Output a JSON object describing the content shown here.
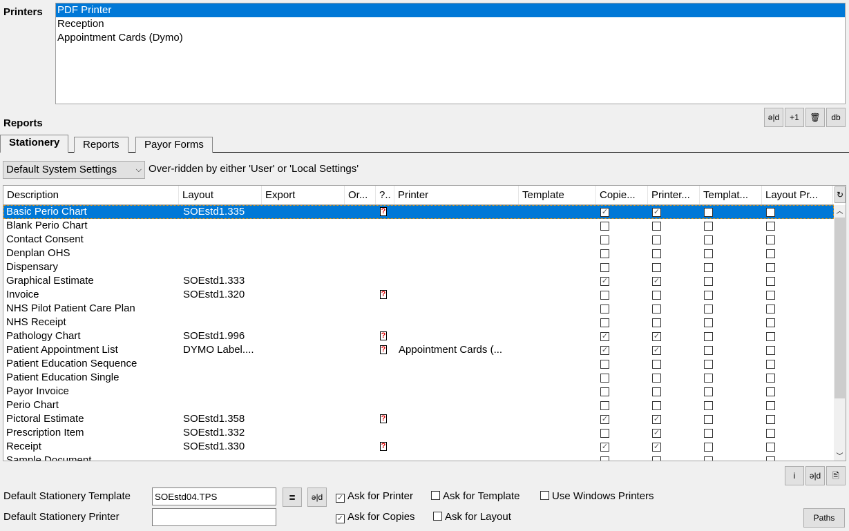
{
  "printers": {
    "label": "Printers",
    "items": [
      "PDF Printer",
      "Reception",
      "Appointment Cards (Dymo)"
    ],
    "selected": 0
  },
  "printer_buttons": [
    {
      "name": "edit-button",
      "glyph": "ǝ|d"
    },
    {
      "name": "add-one-button",
      "glyph": "+1"
    },
    {
      "name": "delete-button",
      "glyph": "🗑"
    },
    {
      "name": "database-button",
      "glyph": "db"
    }
  ],
  "reports_label": "Reports",
  "tabs": [
    {
      "label": "Stationery",
      "active": true
    },
    {
      "label": "Reports"
    },
    {
      "label": "Payor Forms"
    }
  ],
  "settings": {
    "combo_value": "Default System Settings",
    "note": "Over-ridden by either 'User' or 'Local Settings'"
  },
  "grid": {
    "columns": [
      "Description",
      "Layout",
      "Export",
      "Or...",
      "?..",
      "Printer",
      "Template",
      "Copie...",
      "Printer...",
      "Templat...",
      "Layout Pr..."
    ],
    "refresh_glyph": "↻",
    "rows": [
      {
        "d": "Basic Perio Chart",
        "l": "SOEstd1.335",
        "q": true,
        "p": "",
        "c": [
          1,
          1,
          0,
          0
        ],
        "sel": true
      },
      {
        "d": "Blank Perio Chart",
        "l": "",
        "q": false,
        "p": "",
        "c": [
          0,
          0,
          0,
          0
        ]
      },
      {
        "d": "Contact Consent",
        "l": "",
        "q": false,
        "p": "",
        "c": [
          0,
          0,
          0,
          0
        ]
      },
      {
        "d": "Denplan OHS",
        "l": "",
        "q": false,
        "p": "",
        "c": [
          0,
          0,
          0,
          0
        ]
      },
      {
        "d": "Dispensary",
        "l": "",
        "q": false,
        "p": "",
        "c": [
          0,
          0,
          0,
          0
        ]
      },
      {
        "d": "Graphical Estimate",
        "l": "SOEstd1.333",
        "q": false,
        "p": "",
        "c": [
          1,
          1,
          0,
          0
        ]
      },
      {
        "d": "Invoice",
        "l": "SOEstd1.320",
        "q": true,
        "p": "",
        "c": [
          0,
          0,
          0,
          0
        ]
      },
      {
        "d": "NHS Pilot Patient Care Plan",
        "l": "",
        "q": false,
        "p": "",
        "c": [
          0,
          0,
          0,
          0
        ]
      },
      {
        "d": "NHS Receipt",
        "l": "",
        "q": false,
        "p": "",
        "c": [
          0,
          0,
          0,
          0
        ]
      },
      {
        "d": "Pathology Chart",
        "l": "SOEstd1.996",
        "q": true,
        "p": "",
        "c": [
          1,
          1,
          0,
          0
        ]
      },
      {
        "d": "Patient Appointment List",
        "l": "DYMO Label....",
        "q": true,
        "p": "Appointment Cards (...",
        "c": [
          1,
          1,
          0,
          0
        ]
      },
      {
        "d": "Patient Education Sequence",
        "l": "",
        "q": false,
        "p": "",
        "c": [
          0,
          0,
          0,
          0
        ]
      },
      {
        "d": "Patient Education Single",
        "l": "",
        "q": false,
        "p": "",
        "c": [
          0,
          0,
          0,
          0
        ]
      },
      {
        "d": "Payor Invoice",
        "l": "",
        "q": false,
        "p": "",
        "c": [
          0,
          0,
          0,
          0
        ]
      },
      {
        "d": "Perio Chart",
        "l": "",
        "q": false,
        "p": "",
        "c": [
          0,
          0,
          0,
          0
        ]
      },
      {
        "d": "Pictoral Estimate",
        "l": "SOEstd1.358",
        "q": true,
        "p": "",
        "c": [
          1,
          1,
          0,
          0
        ]
      },
      {
        "d": "Prescription Item",
        "l": "SOEstd1.332",
        "q": false,
        "p": "",
        "c": [
          0,
          1,
          0,
          0
        ]
      },
      {
        "d": "Receipt",
        "l": "SOEstd1.330",
        "q": true,
        "p": "",
        "c": [
          1,
          1,
          0,
          0
        ]
      },
      {
        "d": "Sample Document",
        "l": "",
        "q": false,
        "p": "",
        "c": [
          0,
          0,
          0,
          0
        ]
      }
    ]
  },
  "grid_buttons": [
    {
      "name": "info-button",
      "glyph": "i"
    },
    {
      "name": "edit-button",
      "glyph": "ǝ|d"
    },
    {
      "name": "print-preview-button",
      "glyph": "🖹"
    }
  ],
  "footer": {
    "template_label": "Default Stationery Template",
    "template_value": "SOEstd04.TPS",
    "printer_label": "Default Stationery Printer",
    "printer_value": "",
    "checks": [
      {
        "label": "Ask for Printer",
        "checked": true
      },
      {
        "label": "Ask for Template",
        "checked": false
      },
      {
        "label": "Use Windows Printers",
        "checked": false
      },
      {
        "label": "Ask for Copies",
        "checked": true
      },
      {
        "label": "Ask for Layout",
        "checked": false
      }
    ],
    "paths_label": "Paths"
  },
  "colors": {
    "selection": "#0078d7",
    "background": "#f0f0f0"
  }
}
